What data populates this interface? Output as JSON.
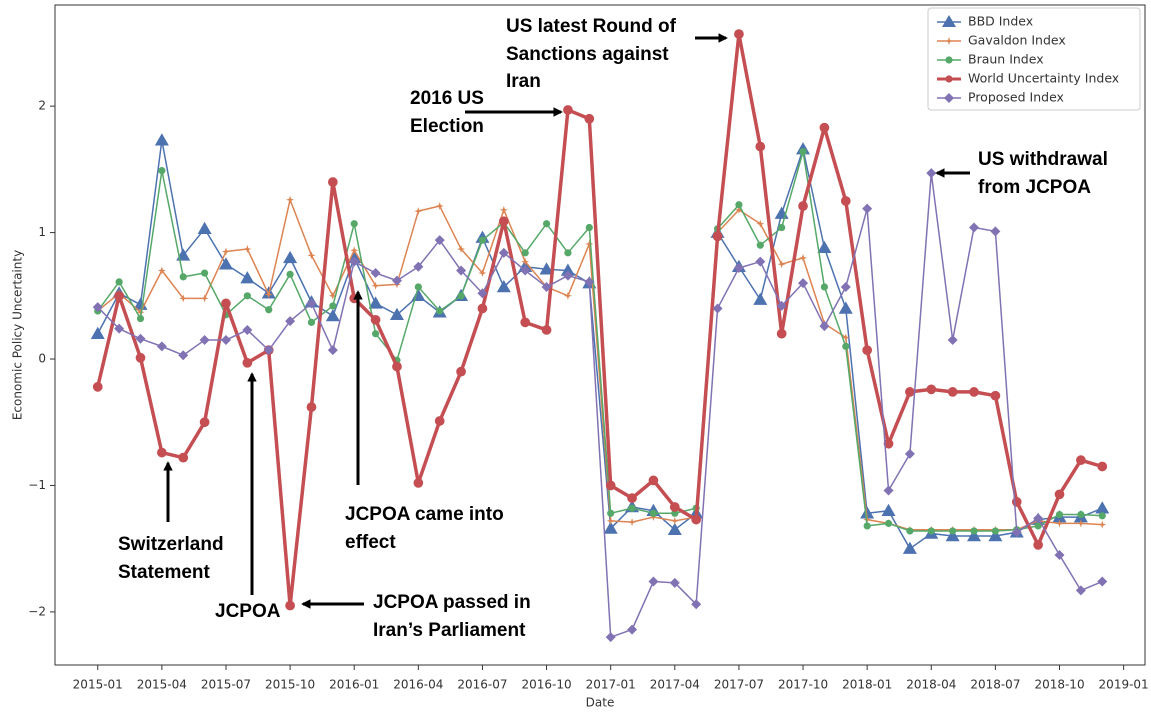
{
  "chart_data": {
    "type": "line",
    "xlabel": "Date",
    "ylabel": "Economic Policy Uncertainty",
    "x": [
      "2015-01",
      "2015-02",
      "2015-03",
      "2015-04",
      "2015-05",
      "2015-06",
      "2015-07",
      "2015-08",
      "2015-09",
      "2015-10",
      "2015-11",
      "2015-12",
      "2016-01",
      "2016-02",
      "2016-03",
      "2016-04",
      "2016-05",
      "2016-06",
      "2016-07",
      "2016-08",
      "2016-09",
      "2016-10",
      "2016-11",
      "2016-12",
      "2017-01",
      "2017-02",
      "2017-03",
      "2017-04",
      "2017-05",
      "2017-06",
      "2017-07",
      "2017-08",
      "2017-09",
      "2017-10",
      "2017-11",
      "2017-12",
      "2018-01",
      "2018-02",
      "2018-03",
      "2018-04",
      "2018-05",
      "2018-06",
      "2018-07",
      "2018-08",
      "2018-09",
      "2018-10",
      "2018-11",
      "2018-12"
    ],
    "xlim": [
      "2014-11",
      "2019-02"
    ],
    "xticks": [
      "2015-01",
      "2015-04",
      "2015-07",
      "2015-10",
      "2016-01",
      "2016-04",
      "2016-07",
      "2016-10",
      "2017-01",
      "2017-04",
      "2017-07",
      "2017-10",
      "2018-01",
      "2018-04",
      "2018-07",
      "2018-10",
      "2019-01"
    ],
    "ylim": [
      -2.42,
      2.8
    ],
    "yticks": [
      {
        "value": -2,
        "label": "−2"
      },
      {
        "value": -1,
        "label": "−1"
      },
      0,
      1,
      2
    ],
    "legend": "upper right",
    "series": [
      {
        "name": "BBD Index",
        "color": "#4c72b0",
        "marker": "triangle",
        "values": [
          0.2,
          0.52,
          0.43,
          1.73,
          0.82,
          1.03,
          0.75,
          0.64,
          0.52,
          0.8,
          0.45,
          0.34,
          0.8,
          0.44,
          0.35,
          0.5,
          0.37,
          0.5,
          0.96,
          0.57,
          0.73,
          0.71,
          0.7,
          0.6,
          -1.34,
          -1.17,
          -1.2,
          -1.35,
          -1.22,
          1.0,
          0.73,
          0.47,
          1.15,
          1.66,
          0.88,
          0.4,
          -1.22,
          -1.2,
          -1.5,
          -1.38,
          -1.4,
          -1.4,
          -1.4,
          -1.37,
          -1.27,
          -1.25,
          -1.25,
          -1.18
        ]
      },
      {
        "name": "Gavaldon Index",
        "color": "#dd8452",
        "marker": "plus",
        "values": [
          0.38,
          0.52,
          0.37,
          0.7,
          0.48,
          0.48,
          0.85,
          0.87,
          0.51,
          1.26,
          0.82,
          0.5,
          0.86,
          0.58,
          0.59,
          1.17,
          1.21,
          0.87,
          0.68,
          1.18,
          0.77,
          0.57,
          0.5,
          0.91,
          -1.28,
          -1.29,
          -1.25,
          -1.28,
          -1.25,
          1.0,
          1.18,
          1.07,
          0.75,
          0.8,
          0.28,
          0.17,
          -1.27,
          -1.3,
          -1.35,
          -1.35,
          -1.35,
          -1.35,
          -1.35,
          -1.35,
          -1.28,
          -1.3,
          -1.3,
          -1.31
        ]
      },
      {
        "name": "Braun Index",
        "color": "#55a868",
        "marker": "circle",
        "values": [
          0.38,
          0.61,
          0.32,
          1.49,
          0.65,
          0.68,
          0.35,
          0.5,
          0.39,
          0.67,
          0.29,
          0.42,
          1.07,
          0.2,
          -0.01,
          0.57,
          0.38,
          0.5,
          0.94,
          1.08,
          0.84,
          1.07,
          0.84,
          1.04,
          -1.22,
          -1.18,
          -1.22,
          -1.22,
          -1.18,
          1.03,
          1.22,
          0.9,
          1.04,
          1.64,
          0.57,
          0.1,
          -1.32,
          -1.3,
          -1.36,
          -1.36,
          -1.36,
          -1.36,
          -1.36,
          -1.35,
          -1.32,
          -1.23,
          -1.23,
          -1.24
        ]
      },
      {
        "name": "World Uncertainty Index",
        "color": "#c44e52",
        "marker": "circle",
        "width": 3.5,
        "values": [
          -0.22,
          0.5,
          0.01,
          -0.74,
          -0.78,
          -0.5,
          0.44,
          -0.03,
          0.07,
          -1.95,
          -0.38,
          1.4,
          0.48,
          0.31,
          -0.06,
          -0.98,
          -0.49,
          -0.1,
          0.4,
          1.09,
          0.29,
          0.23,
          1.97,
          1.9,
          -1.0,
          -1.1,
          -0.96,
          -1.17,
          -1.27,
          0.97,
          2.57,
          1.68,
          0.2,
          1.21,
          1.83,
          1.25,
          0.07,
          -0.67,
          -0.26,
          -0.24,
          -0.26,
          -0.26,
          -0.29,
          -1.13,
          -1.47,
          -1.07,
          -0.8,
          -0.85
        ]
      },
      {
        "name": "Proposed Index",
        "color": "#8172b3",
        "marker": "diamond",
        "values": [
          0.41,
          0.24,
          0.16,
          0.1,
          0.03,
          0.15,
          0.15,
          0.23,
          0.07,
          0.3,
          0.44,
          0.07,
          0.77,
          0.68,
          0.62,
          0.73,
          0.94,
          0.7,
          0.52,
          0.84,
          0.7,
          0.57,
          0.66,
          0.61,
          -2.2,
          -2.14,
          -1.76,
          -1.77,
          -1.94,
          0.4,
          0.72,
          0.77,
          0.42,
          0.6,
          0.26,
          0.57,
          1.19,
          -1.04,
          -0.75,
          1.47,
          0.15,
          1.04,
          1.01,
          -1.37,
          -1.26,
          -1.55,
          -1.83,
          -1.76
        ]
      }
    ],
    "annotations": [
      {
        "text": [
          "Switzerland",
          "Statement"
        ]
      },
      {
        "text": [
          "JCPOA"
        ]
      },
      {
        "text": [
          "JCPOA passed in",
          "Iran’s Parliament"
        ]
      },
      {
        "text": [
          "JCPOA came into",
          "effect"
        ]
      },
      {
        "text": [
          "2016 US",
          "Election"
        ]
      },
      {
        "text": [
          "US latest Round of",
          "Sanctions against",
          "Iran"
        ]
      },
      {
        "text": [
          "US withdrawal",
          "from JCPOA"
        ]
      }
    ]
  }
}
